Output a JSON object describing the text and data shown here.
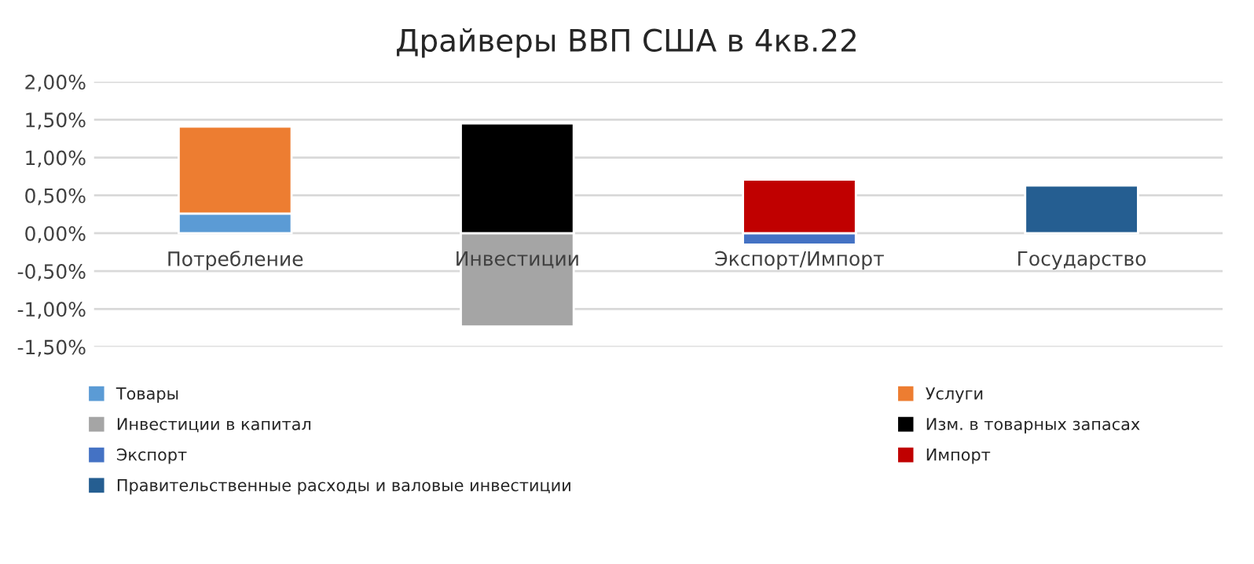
{
  "chart_data": {
    "type": "bar",
    "title": "Драйверы ВВП США в 4кв.22",
    "stacked": true,
    "categories": [
      "Потребление",
      "Инвестиции",
      "Экспорт/Импорт",
      "Государство"
    ],
    "series": [
      {
        "name": "Товары",
        "color": "#5b9bd5",
        "values": [
          0.26,
          null,
          null,
          null
        ]
      },
      {
        "name": "Услуги",
        "color": "#ed7d31",
        "values": [
          1.15,
          null,
          null,
          null
        ]
      },
      {
        "name": "Инвестиции в капитал",
        "color": "#a5a5a5",
        "values": [
          null,
          -1.23,
          null,
          null
        ]
      },
      {
        "name": "Изм. в товарных запасах",
        "color": "#000000",
        "values": [
          null,
          1.45,
          null,
          null
        ]
      },
      {
        "name": "Экспорт",
        "color": "#4472c4",
        "values": [
          null,
          null,
          -0.15,
          null
        ]
      },
      {
        "name": "Импорт",
        "color": "#c00000",
        "values": [
          null,
          null,
          0.71,
          null
        ]
      },
      {
        "name": "Правительственные расходы и валовые инвестиции",
        "color": "#255e91",
        "values": [
          null,
          null,
          null,
          0.63
        ]
      }
    ],
    "ylim": [
      -1.5,
      2.0
    ],
    "yticks": [
      {
        "value": -1.5,
        "label": "-1,50%"
      },
      {
        "value": -1.0,
        "label": "-1,00%"
      },
      {
        "value": -0.5,
        "label": "-0,50%"
      },
      {
        "value": 0,
        "label": "0,00%"
      },
      {
        "value": 0.5,
        "label": "0,50%"
      },
      {
        "value": 1.0,
        "label": "1,00%"
      },
      {
        "value": 1.5,
        "label": "1,50%"
      },
      {
        "value": 2.0,
        "label": "2,00%"
      }
    ],
    "grid": "y",
    "legend": "bottom"
  }
}
